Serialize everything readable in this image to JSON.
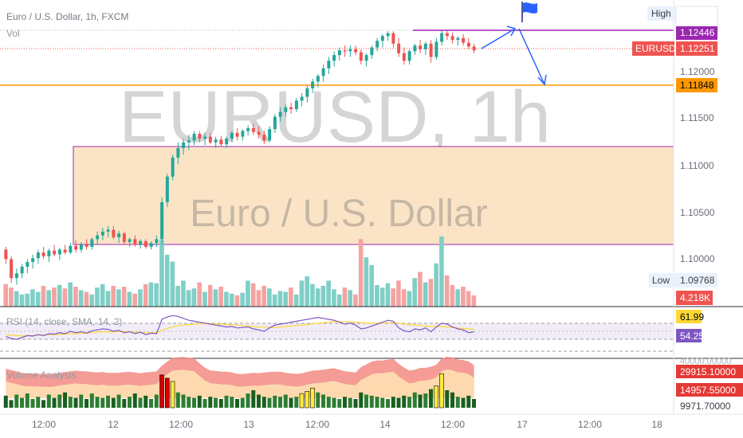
{
  "header": {
    "title": "Euro / U.S. Dollar, 1h, FXCM",
    "vol_label": "Vol"
  },
  "watermark": {
    "symbol": "EURUSD, 1h",
    "name": "Euro / U.S. Dollar"
  },
  "price_scale": {
    "ticks": [
      "1.12000",
      "1.11500",
      "1.11000",
      "1.10500",
      "1.10000"
    ],
    "tick_values": [
      1.12,
      1.115,
      1.11,
      1.105,
      1.1
    ],
    "high_label": "High",
    "high_value": "1.12446",
    "symbol_label": "EURUSD",
    "last_price": "1.12251",
    "line_price": "1.11848",
    "low_label": "Low",
    "low_value": "1.09768",
    "volume_value": "4.218K"
  },
  "rsi": {
    "label": "RSI (14, close, SMA, 14, 2)",
    "value1": "61.99",
    "value2": "54.25"
  },
  "volume_analysis": {
    "label": "Volume Analysis",
    "scale_top": "40000.00000",
    "value1": "29915.10000",
    "value2": "14957.55000",
    "scale_bottom": "9971.70000"
  },
  "time_axis": {
    "labels": [
      "12:00",
      "12",
      "12:00",
      "13",
      "12:00",
      "14",
      "12:00",
      "17",
      "12:00",
      "18"
    ]
  },
  "colors": {
    "up": "#26a69a",
    "down": "#ef5350",
    "zone_fill": "#fbe4c6",
    "zone_border": "#9c27b0",
    "hline": "#ff9800",
    "purple_line": "#9c27b0",
    "arrows": "#2962ff",
    "rsi_line": "#7e57c2",
    "rsi_sma": "#fdd835"
  },
  "chart_data": {
    "type": "candlestick",
    "price_range": [
      1.0955,
      1.1278
    ],
    "horizontal_line": 1.11848,
    "high_level": 1.12446,
    "zone": [
      1.10155,
      1.1121
    ],
    "candles": [
      [
        1.1015,
        1.1018,
        1.1,
        1.1005
      ],
      [
        1.1005,
        1.1008,
        1.098,
        1.0985
      ],
      [
        1.0985,
        1.0995,
        1.0978,
        1.099
      ],
      [
        1.099,
        1.1,
        1.0985,
        1.0997
      ],
      [
        1.0997,
        1.1005,
        1.099,
        1.1002
      ],
      [
        1.1002,
        1.101,
        1.0995,
        1.1006
      ],
      [
        1.1006,
        1.1015,
        1.1,
        1.1012
      ],
      [
        1.1012,
        1.1018,
        1.1005,
        1.1008
      ],
      [
        1.1008,
        1.1016,
        1.1002,
        1.1014
      ],
      [
        1.1014,
        1.102,
        1.1008,
        1.101
      ],
      [
        1.101,
        1.1017,
        1.1004,
        1.1015
      ],
      [
        1.1015,
        1.102,
        1.101,
        1.1012
      ],
      [
        1.1012,
        1.1022,
        1.101,
        1.1019
      ],
      [
        1.1019,
        1.1025,
        1.1012,
        1.1015
      ],
      [
        1.1015,
        1.1023,
        1.1012,
        1.102
      ],
      [
        1.102,
        1.1026,
        1.1015,
        1.1018
      ],
      [
        1.1018,
        1.1028,
        1.1015,
        1.1026
      ],
      [
        1.1026,
        1.1034,
        1.102,
        1.103
      ],
      [
        1.103,
        1.1038,
        1.1025,
        1.1034
      ],
      [
        1.1034,
        1.104,
        1.1028,
        1.1036
      ],
      [
        1.1036,
        1.104,
        1.1026,
        1.1028
      ],
      [
        1.1028,
        1.1035,
        1.1022,
        1.1032
      ],
      [
        1.1032,
        1.1034,
        1.102,
        1.1023
      ],
      [
        1.1023,
        1.1028,
        1.1018,
        1.1026
      ],
      [
        1.1026,
        1.103,
        1.1018,
        1.102
      ],
      [
        1.102,
        1.1026,
        1.1016,
        1.1024
      ],
      [
        1.1024,
        1.1026,
        1.1016,
        1.1018
      ],
      [
        1.1018,
        1.1024,
        1.1015,
        1.1022
      ],
      [
        1.1022,
        1.103,
        1.1018,
        1.1026
      ],
      [
        1.1026,
        1.107,
        1.102,
        1.1065
      ],
      [
        1.1065,
        1.1095,
        1.106,
        1.1092
      ],
      [
        1.1092,
        1.1115,
        1.1088,
        1.1112
      ],
      [
        1.1112,
        1.1128,
        1.1105,
        1.1122
      ],
      [
        1.1122,
        1.1132,
        1.1115,
        1.1128
      ],
      [
        1.1128,
        1.1136,
        1.112,
        1.113
      ],
      [
        1.113,
        1.114,
        1.1125,
        1.1137
      ],
      [
        1.1137,
        1.114,
        1.1128,
        1.1132
      ],
      [
        1.1132,
        1.1138,
        1.1125,
        1.1134
      ],
      [
        1.1134,
        1.1138,
        1.1126,
        1.1128
      ],
      [
        1.1128,
        1.1134,
        1.1122,
        1.1131
      ],
      [
        1.1131,
        1.1135,
        1.1124,
        1.1126
      ],
      [
        1.1126,
        1.1134,
        1.1122,
        1.1132
      ],
      [
        1.1132,
        1.114,
        1.1128,
        1.1138
      ],
      [
        1.1138,
        1.1143,
        1.113,
        1.1134
      ],
      [
        1.1134,
        1.1142,
        1.113,
        1.114
      ],
      [
        1.114,
        1.1146,
        1.1135,
        1.1143
      ],
      [
        1.1143,
        1.1148,
        1.1136,
        1.1139
      ],
      [
        1.1139,
        1.1145,
        1.1132,
        1.1136
      ],
      [
        1.1136,
        1.114,
        1.1126,
        1.113
      ],
      [
        1.113,
        1.1145,
        1.1128,
        1.1142
      ],
      [
        1.1142,
        1.1158,
        1.1138,
        1.1155
      ],
      [
        1.1155,
        1.1165,
        1.115,
        1.116
      ],
      [
        1.116,
        1.1168,
        1.1155,
        1.1165
      ],
      [
        1.1165,
        1.117,
        1.1158,
        1.1163
      ],
      [
        1.1163,
        1.1175,
        1.116,
        1.1172
      ],
      [
        1.1172,
        1.118,
        1.1166,
        1.1176
      ],
      [
        1.1176,
        1.1188,
        1.117,
        1.1185
      ],
      [
        1.1185,
        1.1195,
        1.118,
        1.1192
      ],
      [
        1.1192,
        1.12,
        1.1186,
        1.1198
      ],
      [
        1.1198,
        1.121,
        1.1192,
        1.1206
      ],
      [
        1.1206,
        1.1218,
        1.12,
        1.1214
      ],
      [
        1.1214,
        1.1224,
        1.1208,
        1.122
      ],
      [
        1.122,
        1.1228,
        1.1214,
        1.1225
      ],
      [
        1.1225,
        1.123,
        1.1218,
        1.1224
      ],
      [
        1.1224,
        1.123,
        1.1218,
        1.1226
      ],
      [
        1.1226,
        1.123,
        1.122,
        1.1223
      ],
      [
        1.1223,
        1.1226,
        1.121,
        1.1214
      ],
      [
        1.1214,
        1.1222,
        1.1208,
        1.122
      ],
      [
        1.122,
        1.123,
        1.1216,
        1.1228
      ],
      [
        1.1228,
        1.1238,
        1.1224,
        1.1235
      ],
      [
        1.1235,
        1.1242,
        1.1228,
        1.124
      ],
      [
        1.124,
        1.1245,
        1.1235,
        1.1243
      ],
      [
        1.1243,
        1.1245,
        1.1228,
        1.1232
      ],
      [
        1.1232,
        1.1238,
        1.1218,
        1.1222
      ],
      [
        1.1222,
        1.1228,
        1.121,
        1.1214
      ],
      [
        1.1214,
        1.1226,
        1.121,
        1.1224
      ],
      [
        1.1224,
        1.1232,
        1.122,
        1.123
      ],
      [
        1.123,
        1.1236,
        1.1222,
        1.1226
      ],
      [
        1.1226,
        1.1234,
        1.122,
        1.1232
      ],
      [
        1.1232,
        1.1236,
        1.1212,
        1.1218
      ],
      [
        1.1218,
        1.1238,
        1.1215,
        1.1234
      ],
      [
        1.1234,
        1.1246,
        1.123,
        1.1243
      ],
      [
        1.1243,
        1.1246,
        1.1236,
        1.124
      ],
      [
        1.124,
        1.1244,
        1.1232,
        1.1236
      ],
      [
        1.1236,
        1.124,
        1.123,
        1.1238
      ],
      [
        1.1238,
        1.1242,
        1.123,
        1.1233
      ],
      [
        1.1233,
        1.1238,
        1.1226,
        1.1229
      ],
      [
        1.1229,
        1.1232,
        1.1222,
        1.1225
      ]
    ],
    "volumes": [
      26,
      22,
      18,
      14,
      15,
      20,
      17,
      24,
      19,
      22,
      25,
      21,
      28,
      23,
      19,
      17,
      14,
      22,
      26,
      18,
      24,
      20,
      23,
      17,
      15,
      20,
      26,
      28,
      27,
      77,
      60,
      52,
      24,
      30,
      19,
      21,
      28,
      17,
      25,
      20,
      23,
      17,
      15,
      13,
      16,
      30,
      27,
      19,
      24,
      21,
      14,
      18,
      17,
      22,
      14,
      30,
      35,
      26,
      21,
      24,
      30,
      20,
      14,
      22,
      19,
      14,
      78,
      57,
      48,
      25,
      22,
      27,
      21,
      30,
      20,
      18,
      33,
      40,
      28,
      32,
      50,
      81,
      36,
      25,
      20,
      23,
      18,
      13
    ],
    "rsi": [
      44,
      40,
      38,
      42,
      46,
      45,
      48,
      46,
      50,
      49,
      52,
      50,
      55,
      52,
      54,
      51,
      56,
      58,
      60,
      59,
      55,
      57,
      52,
      54,
      50,
      53,
      48,
      51,
      50,
      80,
      85,
      88,
      86,
      82,
      78,
      76,
      74,
      72,
      70,
      68,
      66,
      64,
      65,
      62,
      63,
      64,
      60,
      58,
      55,
      62,
      68,
      70,
      72,
      74,
      76,
      78,
      80,
      82,
      84,
      82,
      80,
      78,
      74,
      70,
      72,
      68,
      60,
      62,
      66,
      70,
      74,
      78,
      76,
      62,
      56,
      54,
      60,
      58,
      62,
      54,
      64,
      72,
      70,
      64,
      60,
      58,
      52,
      54
    ],
    "rsi_sma": [
      48,
      47,
      46,
      45,
      46,
      46,
      47,
      47,
      48,
      48,
      49,
      49,
      50,
      50,
      51,
      51,
      52,
      53,
      54,
      54,
      54,
      55,
      54,
      54,
      53,
      53,
      52,
      52,
      52,
      57,
      61,
      64,
      67,
      68,
      69,
      70,
      71,
      71,
      71,
      70,
      70,
      69,
      69,
      68,
      67,
      66,
      65,
      64,
      63,
      63,
      63,
      64,
      65,
      66,
      67,
      68,
      69,
      71,
      72,
      73,
      74,
      75,
      75,
      75,
      75,
      74,
      73,
      72,
      72,
      72,
      72,
      73,
      73,
      72,
      70,
      69,
      68,
      67,
      66,
      65,
      65,
      65,
      64,
      63,
      62,
      61,
      60,
      59
    ],
    "vol_analysis": [
      11,
      7,
      12,
      9,
      13,
      8,
      10,
      7,
      12,
      9,
      12,
      14,
      10,
      9,
      12,
      8,
      13,
      10,
      9,
      11,
      9,
      12,
      8,
      10,
      13,
      9,
      11,
      8,
      12,
      30,
      27,
      24,
      14,
      12,
      10,
      9,
      11,
      8,
      10,
      9,
      8,
      11,
      10,
      8,
      9,
      13,
      16,
      12,
      10,
      9,
      11,
      10,
      12,
      9,
      10,
      13,
      15,
      18,
      14,
      12,
      10,
      9,
      8,
      10,
      9,
      8,
      14,
      12,
      11,
      10,
      9,
      8,
      10,
      9,
      11,
      10,
      14,
      12,
      13,
      17,
      20,
      31,
      16,
      14,
      10,
      9,
      11,
      8
    ],
    "vol_highlight": [
      29,
      30,
      31,
      55,
      56,
      57,
      80,
      81
    ]
  }
}
